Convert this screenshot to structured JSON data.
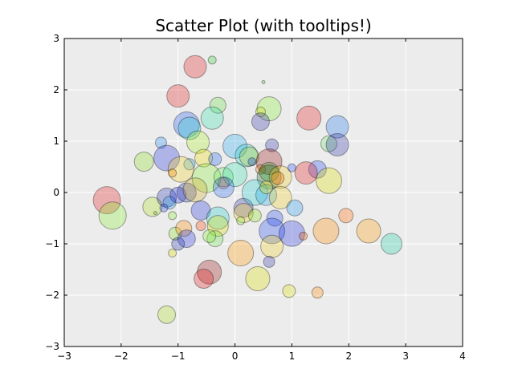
{
  "chart_data": {
    "type": "scatter",
    "title": "Scatter Plot (with tooltips!)",
    "xlabel": "",
    "ylabel": "",
    "xlim": [
      -3,
      4
    ],
    "ylim": [
      -3,
      3
    ],
    "xticks": [
      "−3",
      "−2",
      "−1",
      "0",
      "1",
      "2",
      "3",
      "4"
    ],
    "yticks": [
      "−3",
      "−2",
      "−1",
      "0",
      "1",
      "2",
      "3"
    ],
    "grid": true,
    "background": "#ececec",
    "point_alpha": 0.3,
    "points": [
      {
        "x": -0.7,
        "y": 2.45,
        "s": 14,
        "color": "#e31a1c"
      },
      {
        "x": -0.4,
        "y": 2.58,
        "s": 5,
        "color": "#33cc33"
      },
      {
        "x": 0.5,
        "y": 2.15,
        "s": 2,
        "color": "#33cc33"
      },
      {
        "x": -1.0,
        "y": 1.88,
        "s": 14,
        "color": "#e31a1c"
      },
      {
        "x": -0.3,
        "y": 1.7,
        "s": 10,
        "color": "#66dd44"
      },
      {
        "x": 0.6,
        "y": 1.63,
        "s": 15,
        "color": "#88ee33"
      },
      {
        "x": 0.45,
        "y": 1.57,
        "s": 6,
        "color": "#ccdd00"
      },
      {
        "x": 1.3,
        "y": 1.45,
        "s": 15,
        "color": "#e31a1c"
      },
      {
        "x": -0.4,
        "y": 1.45,
        "s": 14,
        "color": "#33ddaa"
      },
      {
        "x": 0.45,
        "y": 1.38,
        "s": 11,
        "color": "#3333aa"
      },
      {
        "x": -0.85,
        "y": 1.32,
        "s": 16,
        "color": "#2255ee"
      },
      {
        "x": 1.8,
        "y": 1.28,
        "s": 14,
        "color": "#2277ee"
      },
      {
        "x": -0.8,
        "y": 1.25,
        "s": 14,
        "color": "#22cccc"
      },
      {
        "x": 1.65,
        "y": 0.95,
        "s": 10,
        "color": "#66dd66"
      },
      {
        "x": 1.8,
        "y": 0.93,
        "s": 14,
        "color": "#3333aa"
      },
      {
        "x": -1.3,
        "y": 0.97,
        "s": 7,
        "color": "#2288ee"
      },
      {
        "x": -0.65,
        "y": 0.98,
        "s": 14,
        "color": "#aaee22"
      },
      {
        "x": 0.65,
        "y": 0.92,
        "s": 8,
        "color": "#3333aa"
      },
      {
        "x": 0.0,
        "y": 0.9,
        "s": 15,
        "color": "#22aaee"
      },
      {
        "x": 0.2,
        "y": 0.72,
        "s": 14,
        "color": "#22cccc"
      },
      {
        "x": 0.25,
        "y": 0.7,
        "s": 12,
        "color": "#aacc22"
      },
      {
        "x": -0.55,
        "y": 0.67,
        "s": 11,
        "color": "#eedd00"
      },
      {
        "x": -0.35,
        "y": 0.65,
        "s": 8,
        "color": "#2266ee"
      },
      {
        "x": -1.2,
        "y": 0.67,
        "s": 16,
        "color": "#2233dd"
      },
      {
        "x": -1.6,
        "y": 0.6,
        "s": 12,
        "color": "#88dd22"
      },
      {
        "x": 0.3,
        "y": 0.6,
        "s": 5,
        "color": "#2233dd"
      },
      {
        "x": 0.6,
        "y": 0.6,
        "s": 16,
        "color": "#991111"
      },
      {
        "x": 1.45,
        "y": 0.45,
        "s": 11,
        "color": "#2244ee"
      },
      {
        "x": 1.25,
        "y": 0.38,
        "s": 14,
        "color": "#e31a1c"
      },
      {
        "x": -0.8,
        "y": 0.55,
        "s": 7,
        "color": "#22aaee"
      },
      {
        "x": -0.95,
        "y": 0.45,
        "s": 16,
        "color": "#eecc22"
      },
      {
        "x": -1.1,
        "y": 0.38,
        "s": 5,
        "color": "#ff8800"
      },
      {
        "x": -0.5,
        "y": 0.28,
        "s": 18,
        "color": "#88ee33"
      },
      {
        "x": -0.2,
        "y": 0.3,
        "s": 12,
        "color": "#66ee66"
      },
      {
        "x": 0.0,
        "y": 0.35,
        "s": 15,
        "color": "#33ddaa"
      },
      {
        "x": 0.45,
        "y": 0.45,
        "s": 6,
        "color": "#ee6600"
      },
      {
        "x": 0.6,
        "y": 0.4,
        "s": 12,
        "color": "#33aa33"
      },
      {
        "x": 0.6,
        "y": 0.3,
        "s": 15,
        "color": "#226622"
      },
      {
        "x": 0.8,
        "y": 0.3,
        "s": 14,
        "color": "#eecc22"
      },
      {
        "x": 0.75,
        "y": 0.28,
        "s": 8,
        "color": "#ff6600"
      },
      {
        "x": 1.0,
        "y": 0.48,
        "s": 5,
        "color": "#2244ee"
      },
      {
        "x": 1.65,
        "y": 0.23,
        "s": 16,
        "color": "#dddd00"
      },
      {
        "x": -0.2,
        "y": 0.18,
        "s": 7,
        "color": "#ff6600"
      },
      {
        "x": -0.2,
        "y": 0.1,
        "s": 13,
        "color": "#2266ee"
      },
      {
        "x": -2.25,
        "y": -0.15,
        "s": 17,
        "color": "#e31a1c"
      },
      {
        "x": -2.15,
        "y": -0.45,
        "s": 17,
        "color": "#88ee33"
      },
      {
        "x": -1.45,
        "y": -0.28,
        "s": 12,
        "color": "#aadd22"
      },
      {
        "x": -1.4,
        "y": -0.4,
        "s": 2,
        "color": "#66bb22"
      },
      {
        "x": -1.2,
        "y": -0.1,
        "s": 12,
        "color": "#2233aa"
      },
      {
        "x": -1.15,
        "y": -0.2,
        "s": 8,
        "color": "#2299ee"
      },
      {
        "x": -1.25,
        "y": -0.3,
        "s": 5,
        "color": "#2244ee"
      },
      {
        "x": -1.1,
        "y": -0.45,
        "s": 5,
        "color": "#88ee33"
      },
      {
        "x": -1.0,
        "y": -0.05,
        "s": 10,
        "color": "#2233dd"
      },
      {
        "x": -0.85,
        "y": 0.0,
        "s": 12,
        "color": "#2233aa"
      },
      {
        "x": -0.7,
        "y": 0.05,
        "s": 15,
        "color": "#ccaa22"
      },
      {
        "x": -0.6,
        "y": -0.35,
        "s": 12,
        "color": "#2233dd"
      },
      {
        "x": -0.3,
        "y": -0.5,
        "s": 14,
        "color": "#22cccc"
      },
      {
        "x": -0.3,
        "y": -0.65,
        "s": 13,
        "color": "#dddd00"
      },
      {
        "x": -0.6,
        "y": -0.65,
        "s": 6,
        "color": "#ff4400"
      },
      {
        "x": 0.15,
        "y": -0.3,
        "s": 12,
        "color": "#3333aa"
      },
      {
        "x": 0.15,
        "y": -0.4,
        "s": 12,
        "color": "#eecc22"
      },
      {
        "x": 0.35,
        "y": -0.45,
        "s": 8,
        "color": "#88dd22"
      },
      {
        "x": 0.1,
        "y": -0.55,
        "s": 5,
        "color": "#88ee33"
      },
      {
        "x": 0.35,
        "y": 0.0,
        "s": 16,
        "color": "#22cccc"
      },
      {
        "x": 0.55,
        "y": -0.05,
        "s": 13,
        "color": "#22aaee"
      },
      {
        "x": 0.55,
        "y": 0.1,
        "s": 8,
        "color": "#eedd00"
      },
      {
        "x": 0.8,
        "y": -0.1,
        "s": 14,
        "color": "#eecc22"
      },
      {
        "x": 1.05,
        "y": -0.3,
        "s": 10,
        "color": "#2299ee"
      },
      {
        "x": 0.7,
        "y": -0.5,
        "s": 10,
        "color": "#2244ee"
      },
      {
        "x": 0.65,
        "y": -0.75,
        "s": 16,
        "color": "#2244ee"
      },
      {
        "x": 1.0,
        "y": -0.8,
        "s": 16,
        "color": "#2233dd"
      },
      {
        "x": 1.2,
        "y": -0.85,
        "s": 5,
        "color": "#ee5500"
      },
      {
        "x": 1.6,
        "y": -0.75,
        "s": 16,
        "color": "#ff8800"
      },
      {
        "x": 1.95,
        "y": -0.45,
        "s": 9,
        "color": "#ff6600"
      },
      {
        "x": 2.35,
        "y": -0.75,
        "s": 15,
        "color": "#ff9900"
      },
      {
        "x": 2.75,
        "y": -1.0,
        "s": 13,
        "color": "#22ccaa"
      },
      {
        "x": -1.05,
        "y": -0.8,
        "s": 8,
        "color": "#88dd22"
      },
      {
        "x": -0.9,
        "y": -0.7,
        "s": 10,
        "color": "#ff8800"
      },
      {
        "x": -0.85,
        "y": -0.9,
        "s": 11,
        "color": "#2233dd"
      },
      {
        "x": -1.0,
        "y": -1.0,
        "s": 8,
        "color": "#2233aa"
      },
      {
        "x": -0.35,
        "y": -0.9,
        "s": 10,
        "color": "#66dd44"
      },
      {
        "x": -0.45,
        "y": -0.85,
        "s": 8,
        "color": "#88ee33"
      },
      {
        "x": -1.1,
        "y": -1.18,
        "s": 5,
        "color": "#dddd00"
      },
      {
        "x": 0.1,
        "y": -1.18,
        "s": 16,
        "color": "#ff9900"
      },
      {
        "x": 0.65,
        "y": -1.05,
        "s": 14,
        "color": "#eecc22"
      },
      {
        "x": 0.6,
        "y": -1.35,
        "s": 7,
        "color": "#3333aa"
      },
      {
        "x": -0.45,
        "y": -1.55,
        "s": 15,
        "color": "#991111"
      },
      {
        "x": -0.55,
        "y": -1.68,
        "s": 12,
        "color": "#e31a1c"
      },
      {
        "x": 0.4,
        "y": -1.68,
        "s": 15,
        "color": "#dddd00"
      },
      {
        "x": 0.95,
        "y": -1.92,
        "s": 8,
        "color": "#dddd00"
      },
      {
        "x": 1.45,
        "y": -1.95,
        "s": 7,
        "color": "#ff8800"
      },
      {
        "x": -1.2,
        "y": -2.38,
        "s": 11,
        "color": "#aadd22"
      }
    ]
  }
}
